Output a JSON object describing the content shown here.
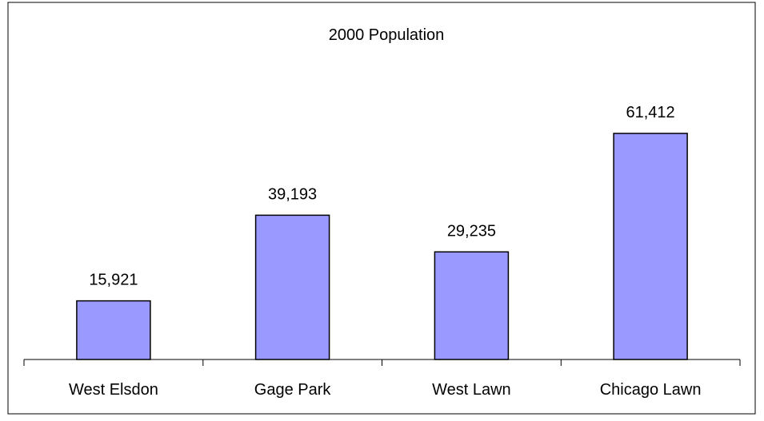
{
  "chart_data": {
    "type": "bar",
    "title": "2000 Population",
    "xlabel": "",
    "ylabel": "",
    "categories": [
      "West Elsdon",
      "Gage Park",
      "West Lawn",
      "Chicago Lawn"
    ],
    "values": [
      15921,
      39193,
      29235,
      61412
    ],
    "data_labels": [
      "15,921",
      "39,193",
      "29,235",
      "61,412"
    ],
    "ylim": [
      0,
      70000
    ],
    "grid": false,
    "legend": "none",
    "bar_color": "#9999ff",
    "bar_stroke": "#000000"
  }
}
